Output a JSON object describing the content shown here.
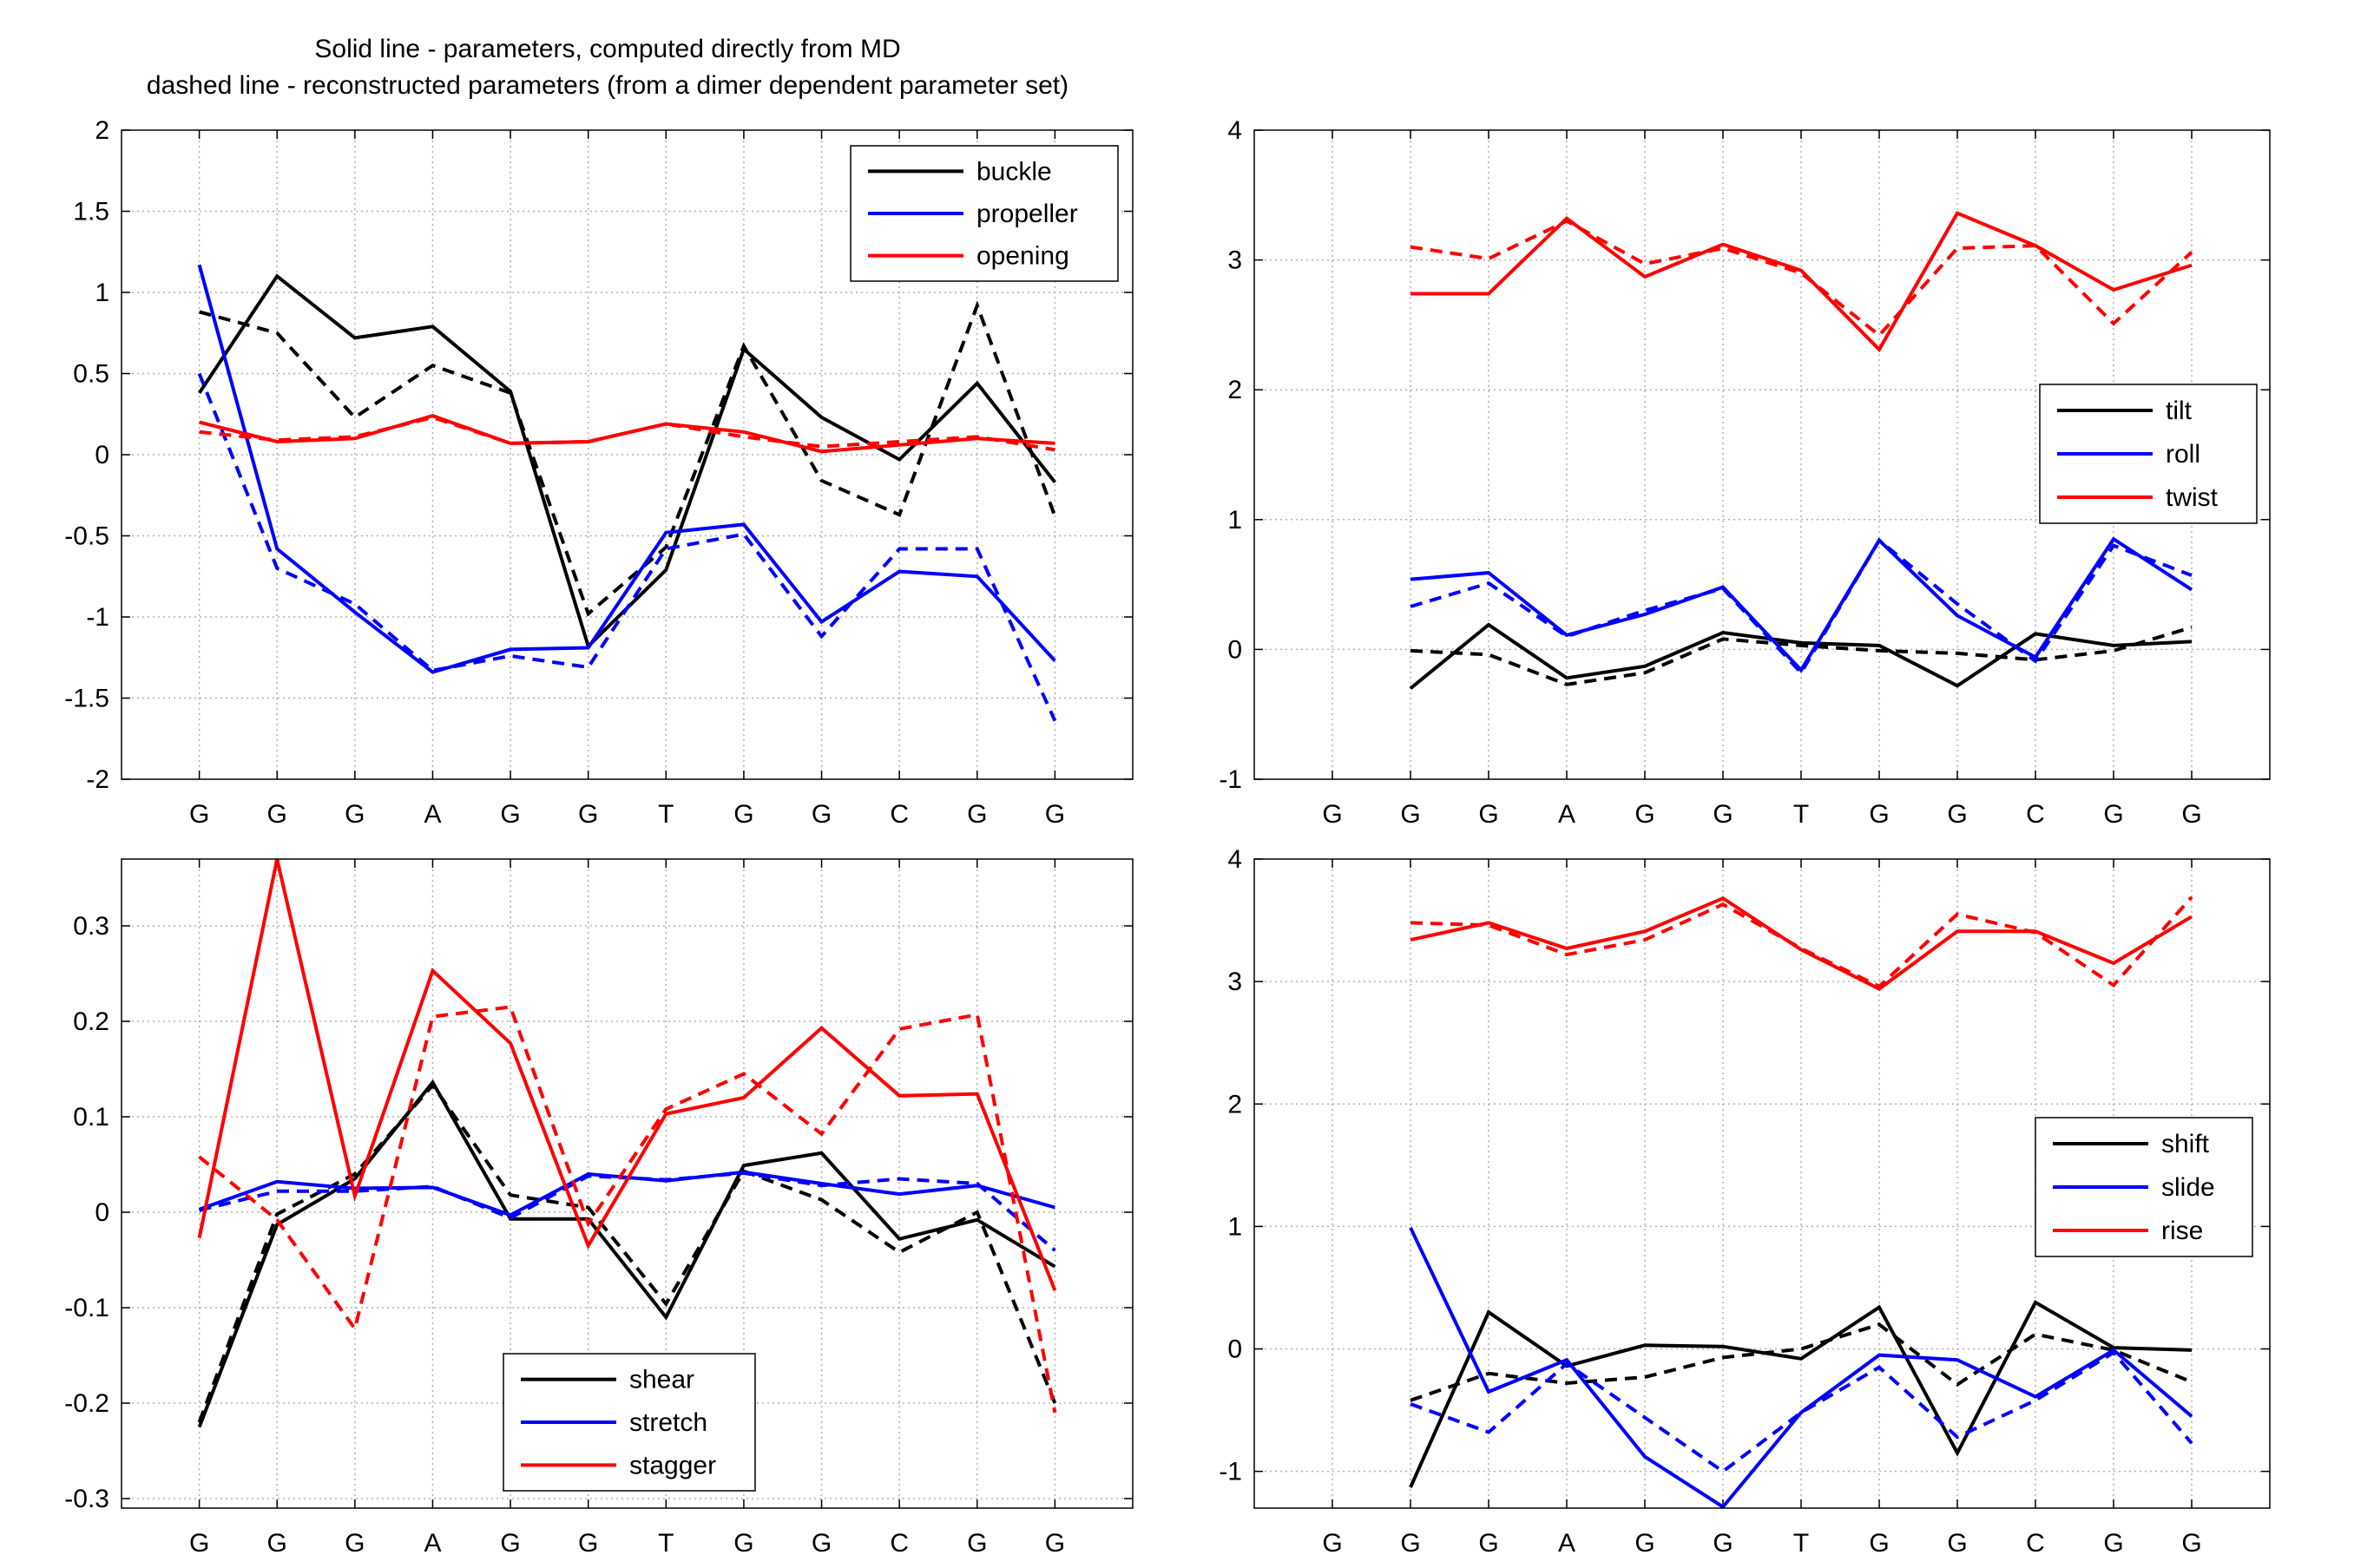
{
  "title": {
    "line1": "Solid line - parameters, computed directly from MD",
    "line2": "dashed line - reconstructed parameters (from a dimer dependent parameter set)"
  },
  "chart_data": [
    {
      "id": "base-pair-angles",
      "type": "line",
      "categories": [
        "G",
        "G",
        "G",
        "A",
        "G",
        "G",
        "T",
        "G",
        "G",
        "C",
        "G",
        "G"
      ],
      "ylim": [
        -2,
        2
      ],
      "yticks": [
        "2",
        "1.5",
        "1",
        "0.5",
        "0",
        "-0.5",
        "-1",
        "-1.5",
        "-2"
      ],
      "ytick_values": [
        2,
        1.5,
        1,
        0.5,
        0,
        -0.5,
        -1,
        -1.5,
        -2
      ],
      "grid": true,
      "legend_position": "top-right",
      "series": [
        {
          "name": "buckle",
          "color": "#000000",
          "values": [
            0.38,
            1.1,
            0.72,
            0.79,
            0.39,
            -1.18,
            -0.71,
            0.65,
            0.23,
            -0.03,
            0.44,
            -0.17
          ],
          "reconstructed": [
            0.88,
            0.75,
            0.23,
            0.55,
            0.38,
            -0.98,
            -0.57,
            0.67,
            -0.16,
            -0.37,
            0.92,
            -0.38
          ]
        },
        {
          "name": "propeller",
          "color": "#0000ff",
          "values": [
            1.17,
            -0.58,
            -0.97,
            -1.34,
            -1.2,
            -1.19,
            -0.48,
            -0.43,
            -1.03,
            -0.72,
            -0.75,
            -1.27
          ],
          "reconstructed": [
            0.5,
            -0.7,
            -0.92,
            -1.33,
            -1.24,
            -1.31,
            -0.58,
            -0.49,
            -1.12,
            -0.58,
            -0.58,
            -1.64
          ]
        },
        {
          "name": "opening",
          "color": "#ff0000",
          "values": [
            0.2,
            0.08,
            0.1,
            0.24,
            0.07,
            0.08,
            0.19,
            0.14,
            0.02,
            0.06,
            0.1,
            0.07
          ],
          "reconstructed": [
            0.14,
            0.09,
            0.11,
            0.23,
            0.07,
            0.08,
            0.19,
            0.11,
            0.05,
            0.08,
            0.11,
            0.03
          ]
        }
      ]
    },
    {
      "id": "step-angles",
      "type": "line",
      "categories": [
        "G",
        "G",
        "G",
        "A",
        "G",
        "G",
        "T",
        "G",
        "G",
        "C",
        "G",
        "G"
      ],
      "ylim": [
        -1,
        4
      ],
      "yticks": [
        "4",
        "3",
        "2",
        "1",
        "0",
        "-1"
      ],
      "ytick_values": [
        4,
        3,
        2,
        1,
        0,
        -1
      ],
      "grid": true,
      "legend_position": "center-right",
      "series": [
        {
          "name": "tilt",
          "color": "#000000",
          "x": [
            1,
            2,
            3,
            4,
            5,
            6,
            7,
            8,
            9,
            10,
            11
          ],
          "values": [
            -0.3,
            0.19,
            -0.22,
            -0.13,
            0.13,
            0.05,
            0.03,
            -0.28,
            0.12,
            0.03,
            0.06
          ],
          "reconstructed": [
            -0.01,
            -0.04,
            -0.27,
            -0.18,
            0.08,
            0.03,
            -0.01,
            -0.03,
            -0.08,
            -0.01,
            0.17
          ]
        },
        {
          "name": "roll",
          "color": "#0000ff",
          "x": [
            1,
            2,
            3,
            4,
            5,
            6,
            7,
            8,
            9,
            10,
            11
          ],
          "values": [
            0.54,
            0.59,
            0.11,
            0.27,
            0.48,
            -0.16,
            0.84,
            0.26,
            -0.06,
            0.85,
            0.46
          ],
          "reconstructed": [
            0.33,
            0.51,
            0.1,
            0.3,
            0.47,
            -0.18,
            0.84,
            0.35,
            -0.09,
            0.8,
            0.57
          ]
        },
        {
          "name": "twist",
          "color": "#ff0000",
          "x": [
            1,
            2,
            3,
            4,
            5,
            6,
            7,
            8,
            9,
            10,
            11
          ],
          "values": [
            2.74,
            2.74,
            3.32,
            2.87,
            3.12,
            2.92,
            2.31,
            3.36,
            3.11,
            2.77,
            2.96
          ],
          "reconstructed": [
            3.1,
            3.01,
            3.3,
            2.97,
            3.09,
            2.9,
            2.42,
            3.09,
            3.11,
            2.51,
            3.06
          ]
        }
      ]
    },
    {
      "id": "base-pair-translations",
      "type": "line",
      "categories": [
        "G",
        "G",
        "G",
        "A",
        "G",
        "G",
        "T",
        "G",
        "G",
        "C",
        "G",
        "G"
      ],
      "ylim": [
        -0.31,
        0.37
      ],
      "yticks": [
        "0.3",
        "0.2",
        "0.1",
        "0",
        "-0.1",
        "-0.2",
        "-0.3"
      ],
      "ytick_values": [
        0.3,
        0.2,
        0.1,
        0,
        -0.1,
        -0.2,
        -0.3
      ],
      "grid": true,
      "legend_position": "bottom-center",
      "series": [
        {
          "name": "shear",
          "color": "#000000",
          "values": [
            -0.225,
            -0.013,
            0.035,
            0.136,
            -0.007,
            -0.007,
            -0.11,
            0.049,
            0.062,
            -0.028,
            -0.008,
            -0.057
          ],
          "reconstructed": [
            -0.22,
            -0.002,
            0.04,
            0.133,
            0.018,
            0.005,
            -0.096,
            0.043,
            0.013,
            -0.042,
            0.0,
            -0.2
          ]
        },
        {
          "name": "stretch",
          "color": "#0000ff",
          "values": [
            0.003,
            0.032,
            0.025,
            0.026,
            -0.003,
            0.04,
            0.033,
            0.042,
            0.03,
            0.019,
            0.028,
            0.005
          ],
          "reconstructed": [
            0.002,
            0.022,
            0.022,
            0.027,
            -0.006,
            0.038,
            0.034,
            0.041,
            0.028,
            0.035,
            0.03,
            -0.04
          ]
        },
        {
          "name": "stagger",
          "color": "#ff0000",
          "values": [
            -0.027,
            0.37,
            0.017,
            0.253,
            0.177,
            -0.035,
            0.103,
            0.12,
            0.193,
            0.122,
            0.124,
            -0.082
          ],
          "reconstructed": [
            0.058,
            -0.008,
            -0.122,
            0.205,
            0.215,
            -0.012,
            0.108,
            0.145,
            0.082,
            0.192,
            0.207,
            -0.21
          ]
        }
      ]
    },
    {
      "id": "step-translations",
      "type": "line",
      "categories": [
        "G",
        "G",
        "G",
        "A",
        "G",
        "G",
        "T",
        "G",
        "G",
        "C",
        "G",
        "G"
      ],
      "ylim": [
        -1.3,
        4
      ],
      "yticks": [
        "4",
        "3",
        "2",
        "1",
        "0",
        "-1"
      ],
      "ytick_values": [
        4,
        3,
        2,
        1,
        0,
        -1
      ],
      "grid": true,
      "legend_position": "center-right",
      "series": [
        {
          "name": "shift",
          "color": "#000000",
          "x": [
            1,
            2,
            3,
            4,
            5,
            6,
            7,
            8,
            9,
            10,
            11
          ],
          "values": [
            -1.13,
            0.3,
            -0.14,
            0.03,
            0.02,
            -0.08,
            0.34,
            -0.85,
            0.38,
            0.01,
            -0.01
          ],
          "reconstructed": [
            -0.42,
            -0.2,
            -0.28,
            -0.23,
            -0.07,
            0.0,
            0.2,
            -0.29,
            0.12,
            -0.01,
            -0.27
          ]
        },
        {
          "name": "slide",
          "color": "#0000ff",
          "x": [
            1,
            2,
            3,
            4,
            5,
            6,
            7,
            8,
            9,
            10,
            11
          ],
          "values": [
            0.99,
            -0.35,
            -0.09,
            -0.88,
            -1.29,
            -0.52,
            -0.05,
            -0.09,
            -0.39,
            -0.01,
            -0.55
          ],
          "reconstructed": [
            -0.45,
            -0.68,
            -0.12,
            -0.56,
            -1.0,
            -0.52,
            -0.15,
            -0.72,
            -0.42,
            -0.03,
            -0.77
          ]
        },
        {
          "name": "rise",
          "color": "#ff0000",
          "x": [
            1,
            2,
            3,
            4,
            5,
            6,
            7,
            8,
            9,
            10,
            11
          ],
          "values": [
            3.34,
            3.48,
            3.27,
            3.41,
            3.68,
            3.26,
            2.94,
            3.41,
            3.41,
            3.15,
            3.53
          ],
          "reconstructed": [
            3.48,
            3.46,
            3.22,
            3.34,
            3.63,
            3.27,
            2.96,
            3.55,
            3.4,
            2.97,
            3.69
          ]
        }
      ]
    }
  ]
}
